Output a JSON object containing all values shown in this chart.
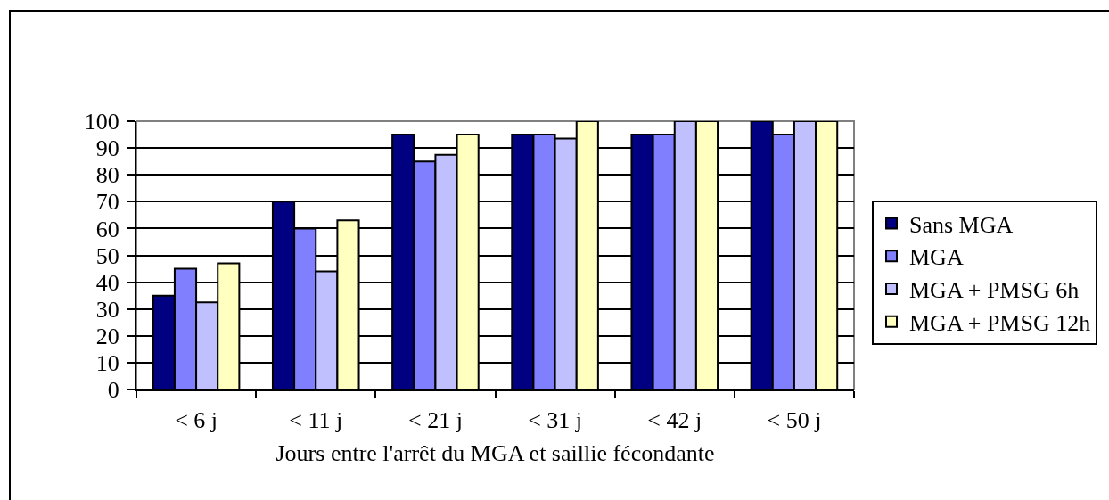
{
  "chart_data": {
    "type": "bar",
    "categories": [
      "< 6 j",
      "< 11 j",
      "< 21 j",
      "< 31 j",
      "< 42 j",
      "< 50 j"
    ],
    "xlabel": "Jours entre l'arrêt du MGA et saillie fécondante",
    "series": [
      {
        "name": "Sans MGA",
        "color": "#000080",
        "values": [
          35,
          70,
          95,
          95,
          95,
          100
        ]
      },
      {
        "name": "MGA",
        "color": "#8080ff",
        "values": [
          45,
          60,
          85,
          95,
          95,
          95
        ]
      },
      {
        "name": "MGA + PMSG 6h",
        "color": "#c0c0ff",
        "values": [
          32.5,
          44,
          87.5,
          93.5,
          100,
          100
        ]
      },
      {
        "name": "MGA + PMSG 12h",
        "color": "#ffffc0",
        "values": [
          47,
          63,
          95,
          100,
          100,
          100
        ]
      }
    ],
    "ylim": [
      0,
      100
    ],
    "yticks": [
      0,
      10,
      20,
      30,
      40,
      50,
      60,
      70,
      80,
      90,
      100
    ],
    "grid": "y",
    "legend": "right"
  }
}
